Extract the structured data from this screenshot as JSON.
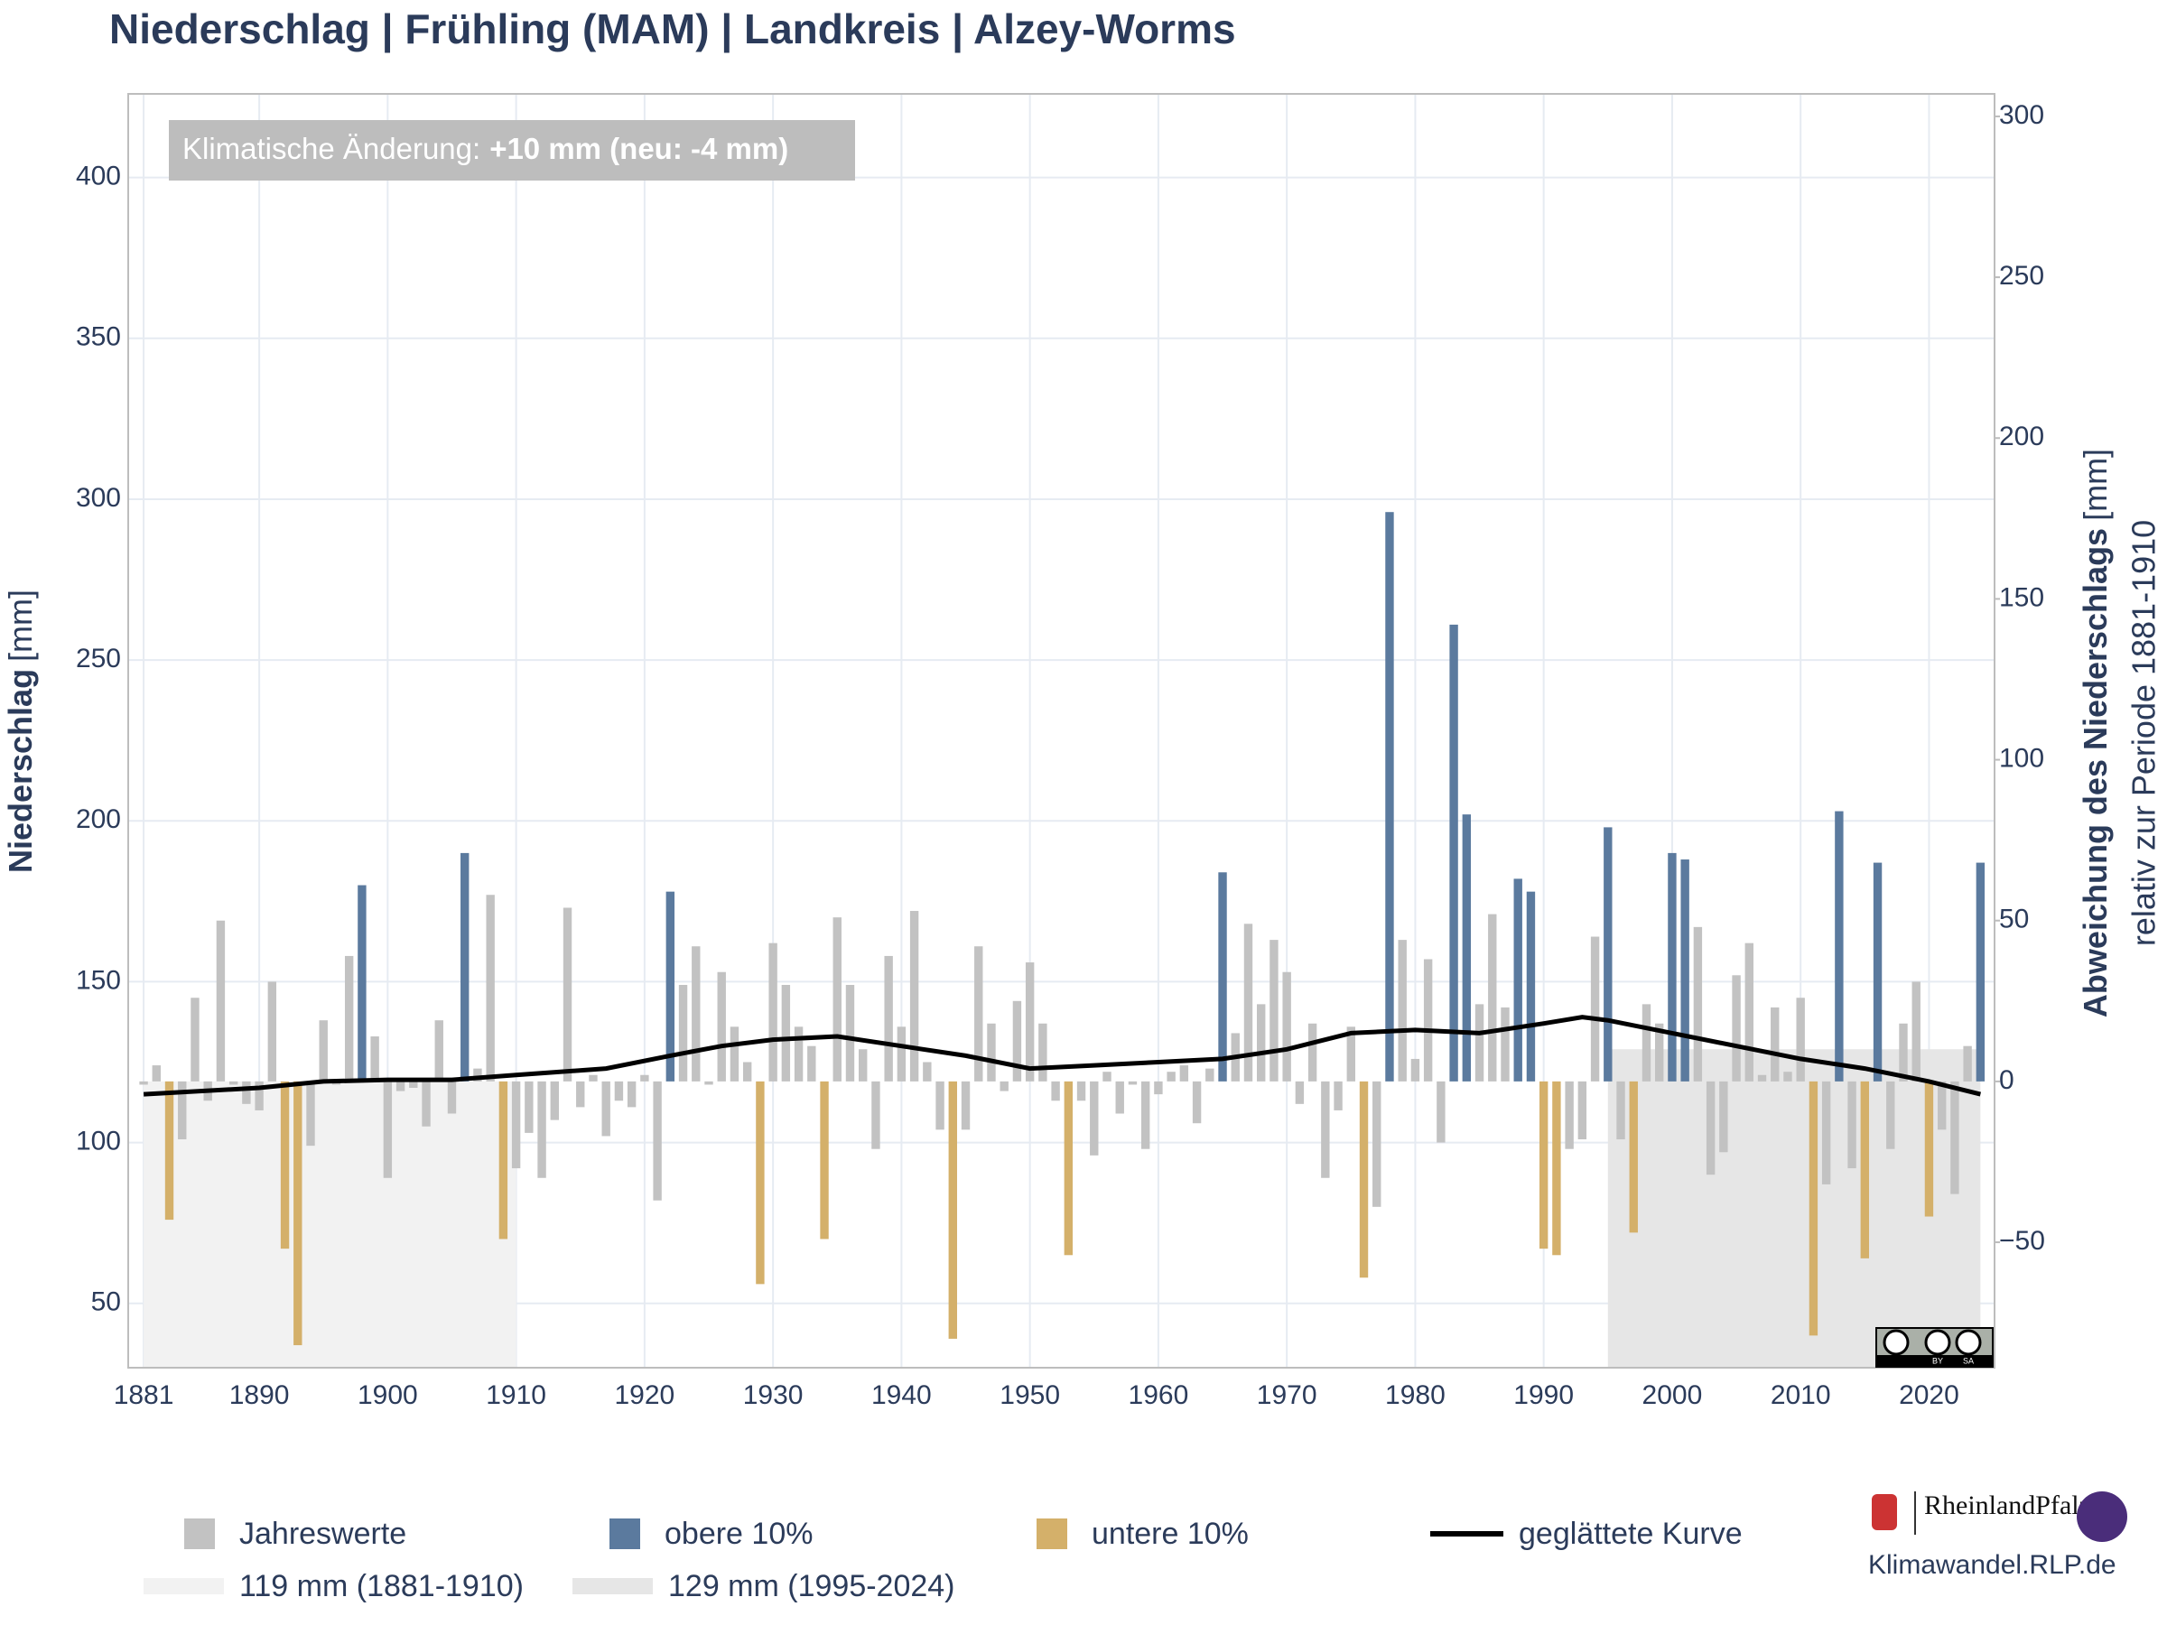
{
  "chart_data": {
    "type": "bar",
    "title": "Niederschlag | Frühling (MAM) | Landkreis | Alzey-Worms",
    "y_label": {
      "bold": "Niederschlag",
      "rest": "[mm]"
    },
    "y2_label": {
      "bold": "Abweichung des Niederschlags",
      "rest": "[mm]",
      "sub": "relativ zur Periode 1881-1910"
    },
    "annotation": {
      "text": "Klimatische Änderung:",
      "bold": "+10 mm (neu: -4 mm)"
    },
    "x": [
      1881,
      1882,
      1883,
      1884,
      1885,
      1886,
      1887,
      1888,
      1889,
      1890,
      1891,
      1892,
      1893,
      1894,
      1895,
      1896,
      1897,
      1898,
      1899,
      1900,
      1901,
      1902,
      1903,
      1904,
      1905,
      1906,
      1907,
      1908,
      1909,
      1910,
      1911,
      1912,
      1913,
      1914,
      1915,
      1916,
      1917,
      1918,
      1919,
      1920,
      1921,
      1922,
      1923,
      1924,
      1925,
      1926,
      1927,
      1928,
      1929,
      1930,
      1931,
      1932,
      1933,
      1934,
      1935,
      1936,
      1937,
      1938,
      1939,
      1940,
      1941,
      1942,
      1943,
      1944,
      1945,
      1946,
      1947,
      1948,
      1949,
      1950,
      1951,
      1952,
      1953,
      1954,
      1955,
      1956,
      1957,
      1958,
      1959,
      1960,
      1961,
      1962,
      1963,
      1964,
      1965,
      1966,
      1967,
      1968,
      1969,
      1970,
      1971,
      1972,
      1973,
      1974,
      1975,
      1976,
      1977,
      1978,
      1979,
      1980,
      1981,
      1982,
      1983,
      1984,
      1985,
      1986,
      1987,
      1988,
      1989,
      1990,
      1991,
      1992,
      1993,
      1994,
      1995,
      1996,
      1997,
      1998,
      1999,
      2000,
      2001,
      2002,
      2003,
      2004,
      2005,
      2006,
      2007,
      2008,
      2009,
      2010,
      2011,
      2012,
      2013,
      2014,
      2015,
      2016,
      2017,
      2018,
      2019,
      2020,
      2021,
      2022,
      2023,
      2024
    ],
    "series": [
      {
        "name": "Jahreswerte",
        "color": "#c2c2c2",
        "values": [
          118,
          124,
          null,
          101,
          145,
          113,
          169,
          118,
          112,
          110,
          150,
          null,
          null,
          99,
          138,
          118,
          158,
          null,
          133,
          89,
          116,
          117,
          105,
          138,
          109,
          null,
          123,
          177,
          null,
          92,
          103,
          89,
          107,
          173,
          111,
          121,
          102,
          113,
          111,
          121,
          82,
          null,
          149,
          161,
          118,
          153,
          136,
          125,
          null,
          162,
          149,
          136,
          130,
          null,
          170,
          149,
          129,
          98,
          158,
          136,
          172,
          125,
          104,
          null,
          104,
          161,
          137,
          116,
          144,
          156,
          137,
          113,
          null,
          113,
          96,
          122,
          109,
          118,
          98,
          115,
          122,
          124,
          106,
          123,
          null,
          134,
          168,
          143,
          163,
          153,
          112,
          137,
          89,
          110,
          136,
          null,
          80,
          null,
          163,
          126,
          157,
          100,
          null,
          null,
          143,
          171,
          142,
          null,
          null,
          null,
          null,
          98,
          101,
          164,
          null,
          101,
          null,
          143,
          137,
          null,
          null,
          167,
          90,
          97,
          152,
          162,
          121,
          142,
          122,
          145,
          null,
          87,
          null,
          92,
          null,
          null,
          98,
          137,
          150,
          null,
          104,
          84,
          130,
          null
        ]
      },
      {
        "name": "obere 10%",
        "color": "#5b7a9e",
        "values": [
          null,
          null,
          null,
          null,
          null,
          null,
          null,
          null,
          null,
          null,
          null,
          null,
          null,
          null,
          null,
          null,
          null,
          180,
          null,
          null,
          null,
          null,
          null,
          null,
          null,
          190,
          null,
          null,
          null,
          null,
          null,
          null,
          null,
          null,
          null,
          null,
          null,
          null,
          null,
          null,
          null,
          178,
          null,
          null,
          null,
          null,
          null,
          null,
          null,
          null,
          null,
          null,
          null,
          null,
          null,
          null,
          null,
          null,
          null,
          null,
          null,
          null,
          null,
          null,
          null,
          null,
          null,
          null,
          null,
          null,
          null,
          null,
          null,
          null,
          null,
          null,
          null,
          null,
          null,
          null,
          null,
          null,
          null,
          null,
          184,
          null,
          null,
          null,
          null,
          null,
          null,
          null,
          null,
          null,
          null,
          null,
          null,
          296,
          null,
          null,
          null,
          null,
          261,
          202,
          null,
          null,
          null,
          182,
          178,
          null,
          null,
          null,
          null,
          null,
          198,
          null,
          null,
          null,
          null,
          190,
          188,
          null,
          null,
          null,
          null,
          null,
          null,
          null,
          null,
          null,
          null,
          null,
          203,
          null,
          null,
          187,
          null,
          null,
          null,
          null,
          null,
          null,
          null,
          187
        ]
      },
      {
        "name": "untere 10%",
        "color": "#d4b06a",
        "values": [
          null,
          null,
          76,
          null,
          null,
          null,
          null,
          null,
          null,
          null,
          null,
          67,
          37,
          null,
          null,
          null,
          null,
          null,
          null,
          null,
          null,
          null,
          null,
          null,
          null,
          null,
          null,
          null,
          70,
          null,
          null,
          null,
          null,
          null,
          null,
          null,
          null,
          null,
          null,
          null,
          null,
          null,
          null,
          null,
          null,
          null,
          null,
          null,
          56,
          null,
          null,
          null,
          null,
          70,
          null,
          null,
          null,
          null,
          null,
          null,
          null,
          null,
          null,
          39,
          null,
          null,
          null,
          null,
          null,
          null,
          null,
          null,
          65,
          null,
          null,
          null,
          null,
          null,
          null,
          null,
          null,
          null,
          null,
          null,
          null,
          null,
          null,
          null,
          null,
          null,
          null,
          null,
          null,
          null,
          null,
          58,
          null,
          null,
          null,
          null,
          null,
          null,
          null,
          null,
          null,
          null,
          null,
          null,
          null,
          67,
          65,
          null,
          null,
          null,
          null,
          null,
          72,
          null,
          null,
          null,
          null,
          null,
          null,
          null,
          null,
          null,
          null,
          null,
          null,
          null,
          40,
          null,
          null,
          null,
          64,
          null,
          null,
          null,
          null,
          77,
          null,
          null,
          null,
          null
        ]
      },
      {
        "name": "geglättete Kurve",
        "color": "#000000",
        "type": "line",
        "x": [
          1881,
          1890,
          1895,
          1900,
          1905,
          1910,
          1917,
          1922,
          1926,
          1930,
          1935,
          1940,
          1945,
          1950,
          1955,
          1960,
          1965,
          1970,
          1975,
          1980,
          1985,
          1990,
          1993,
          1995,
          2000,
          2005,
          2010,
          2015,
          2020,
          2024
        ],
        "values": [
          115,
          117,
          119,
          119.5,
          119.5,
          121,
          123,
          127,
          130,
          132,
          133,
          130,
          127,
          123,
          124,
          125,
          126,
          129,
          134,
          135,
          134,
          137,
          139,
          138,
          134,
          130,
          126,
          123,
          119,
          115
        ]
      }
    ],
    "reference_periods": [
      {
        "label": "119 mm (1881-1910)",
        "value": 119,
        "start": 1881,
        "end": 1910,
        "color": "#f2f2f2"
      },
      {
        "label": "129 mm (1995-2024)",
        "value": 129,
        "start": 1995,
        "end": 2024,
        "color": "#e6e6e6"
      }
    ],
    "xlim": [
      1879.8,
      2025.1
    ],
    "xticks": [
      1881,
      1890,
      1900,
      1910,
      1920,
      1930,
      1940,
      1950,
      1960,
      1970,
      1980,
      1990,
      2000,
      2010,
      2020
    ],
    "ylim": [
      30,
      426
    ],
    "yticks": [
      50,
      100,
      150,
      200,
      250,
      300,
      350,
      400
    ],
    "y2lim": [
      -89,
      307
    ],
    "y2ticks": [
      {
        "value": -50,
        "label": "−50"
      },
      0,
      50,
      100,
      150,
      200,
      250,
      300
    ],
    "grid": true,
    "logo": {
      "name": "RheinlandPfalz",
      "url": "Klimawandel.RLP.de"
    },
    "license": [
      "BY",
      "SA"
    ]
  }
}
